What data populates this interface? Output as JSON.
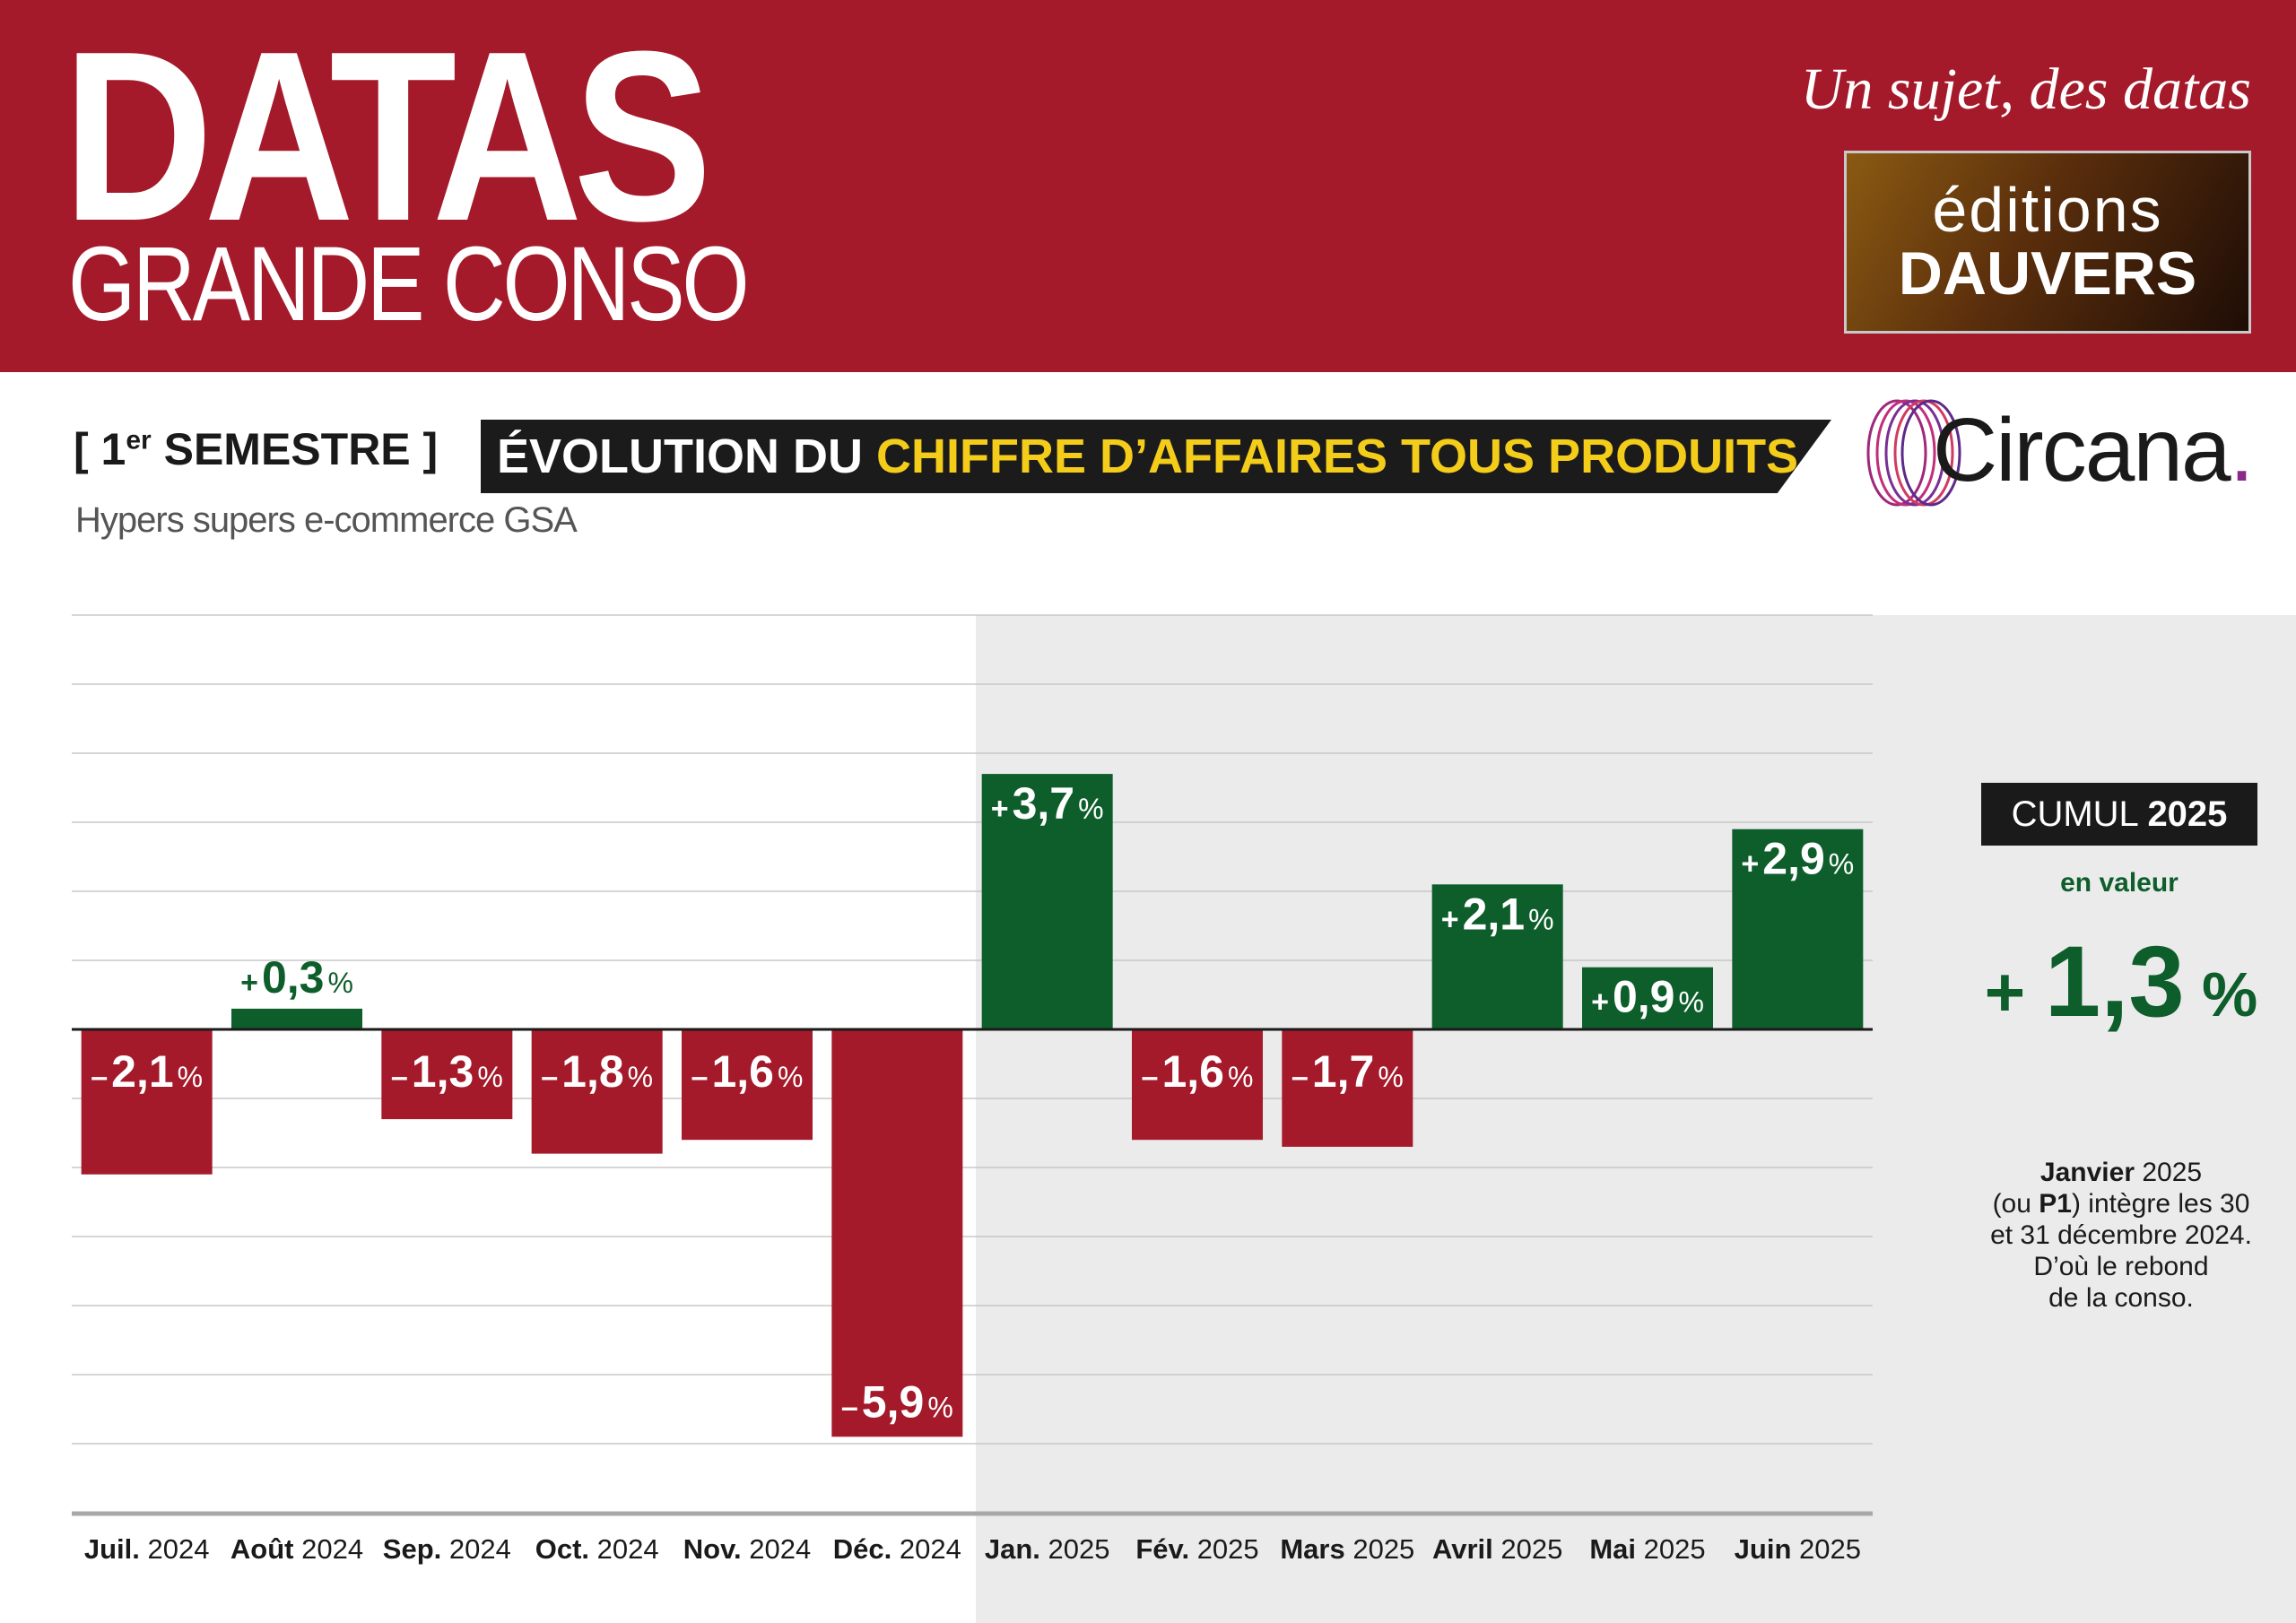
{
  "header": {
    "brand_title": "DATAS",
    "brand_subtitle": "GRANDE CONSO",
    "tagline": "Un sujet, des datas",
    "publisher_line1": "éditions",
    "publisher_line2": "DAUVERS",
    "brand_color": "#a41a2a"
  },
  "section": {
    "period_prefix": "[ 1",
    "period_sup": "er",
    "period_suffix": " SEMESTRE ]",
    "title_part1": "ÉVOLUTION DU ",
    "title_part2": "CHIFFRE D’AFFAIRES TOUS PRODUITS",
    "scope": "Hypers supers e-commerce GSA",
    "source": "Circana",
    "source_dot": "."
  },
  "cumul": {
    "label_prefix": "CUMUL ",
    "label_year": "2025",
    "sublabel": "en valeur",
    "sign": "+ ",
    "value": "1,3",
    "unit": " %"
  },
  "footnote": {
    "bold1": "Janvier",
    "text1": " 2025",
    "text2": "(ou ",
    "bold2": "P1",
    "text3": ") intègre les 30",
    "text4": "et 31 décembre 2024.",
    "text5": "D’où le rebond",
    "text6": "de la conso."
  },
  "chart_data": {
    "type": "bar",
    "title": "ÉVOLUTION DU CHIFFRE D’AFFAIRES TOUS PRODUITS",
    "categories": [
      {
        "bold": "Juil.",
        "rest": " 2024"
      },
      {
        "bold": "Août",
        "rest": " 2024"
      },
      {
        "bold": "Sep.",
        "rest": " 2024"
      },
      {
        "bold": "Oct.",
        "rest": " 2024"
      },
      {
        "bold": "Nov.",
        "rest": " 2024"
      },
      {
        "bold": "Déc.",
        "rest": " 2024"
      },
      {
        "bold": "Jan.",
        "rest": " 2025"
      },
      {
        "bold": "Fév.",
        "rest": " 2025"
      },
      {
        "bold": "Mars",
        "rest": " 2025"
      },
      {
        "bold": "Avril",
        "rest": " 2025"
      },
      {
        "bold": "Mai",
        "rest": " 2025"
      },
      {
        "bold": "Juin",
        "rest": " 2025"
      }
    ],
    "values": [
      -2.1,
      0.3,
      -1.3,
      -1.8,
      -1.6,
      -5.9,
      3.7,
      -1.6,
      -1.7,
      2.1,
      0.9,
      2.9
    ],
    "labels": [
      "2,1",
      "0,3",
      "1,3",
      "1,8",
      "1,6",
      "5,9",
      "3,7",
      "1,6",
      "1,7",
      "2,1",
      "0,9",
      "2,9"
    ],
    "ylim": [
      -7,
      6
    ],
    "grid": true,
    "colors": {
      "positive": "#0e5e2c",
      "negative": "#a41a2a"
    }
  }
}
